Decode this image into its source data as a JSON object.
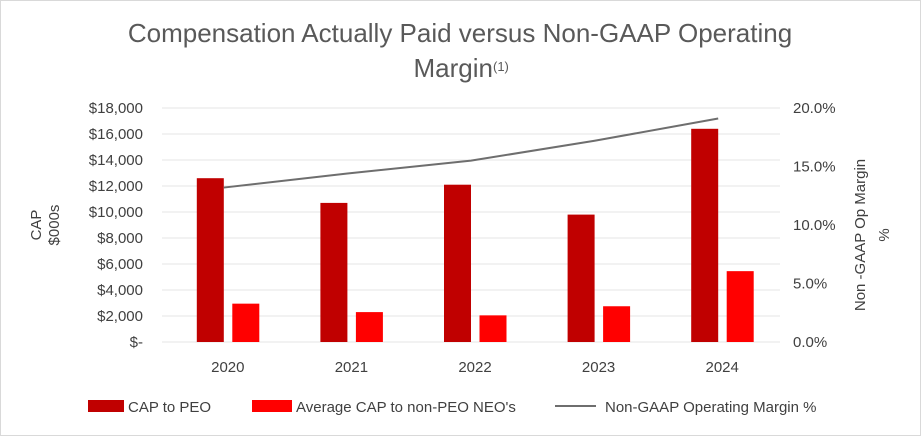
{
  "chart_data": {
    "type": "bar",
    "title": "Compensation Actually Paid versus Non-GAAP Operating",
    "title_line2": "Margin",
    "title_superscript": "(1)",
    "categories": [
      "2020",
      "2021",
      "2022",
      "2023",
      "2024"
    ],
    "series": [
      {
        "name": "CAP to PEO",
        "type": "bar",
        "axis": "left",
        "color": "#c00000",
        "values": [
          12600,
          10700,
          12100,
          9800,
          16400
        ]
      },
      {
        "name": "Average CAP to non-PEO NEO's",
        "type": "bar",
        "axis": "left",
        "color": "#ff0000",
        "values": [
          2950,
          2300,
          2050,
          2750,
          5450
        ]
      },
      {
        "name": "Non-GAAP Operating Margin %",
        "type": "line",
        "axis": "right",
        "color": "#6e6e6e",
        "values": [
          13.2,
          14.4,
          15.5,
          17.2,
          19.1
        ]
      }
    ],
    "y_left": {
      "label_line1": "CAP",
      "label_line2": "$000s",
      "min": 0,
      "max": 18000,
      "ticks": [
        0,
        2000,
        4000,
        6000,
        8000,
        10000,
        12000,
        14000,
        16000,
        18000
      ],
      "tick_labels": [
        "$-",
        "$2,000",
        "$4,000",
        "$6,000",
        "$8,000",
        "$10,000",
        "$12,000",
        "$14,000",
        "$16,000",
        "$18,000"
      ]
    },
    "y_right": {
      "label_line1": "Non -GAAP Op Margin",
      "label_line2": "%",
      "min": 0,
      "max": 20,
      "ticks": [
        0,
        5,
        10,
        15,
        20
      ],
      "tick_labels": [
        "0.0%",
        "5.0%",
        "10.0%",
        "15.0%",
        "20.0%"
      ]
    },
    "grid": true,
    "legend_position": "bottom"
  }
}
